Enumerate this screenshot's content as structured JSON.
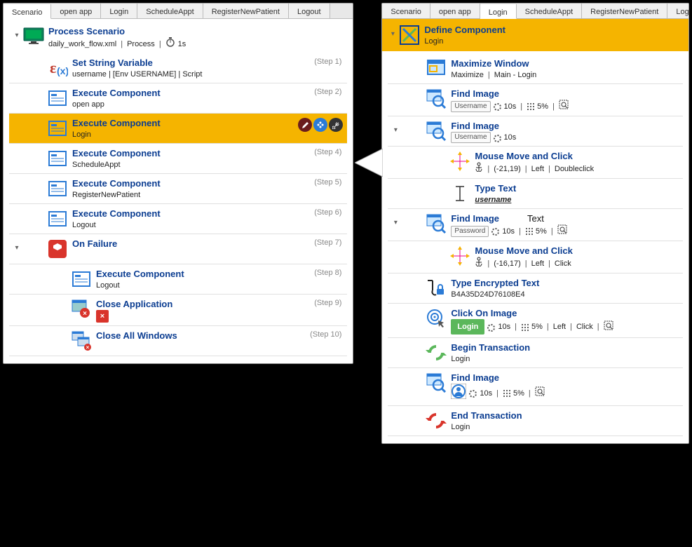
{
  "left": {
    "tabs": [
      "Scenario",
      "open app",
      "Login",
      "ScheduleAppt",
      "RegisterNewPatient",
      "Logout"
    ],
    "active_tab": 0,
    "header": {
      "title": "Process Scenario",
      "file": "daily_work_flow.xml",
      "kind": "Process",
      "time": "1s"
    },
    "steps": [
      {
        "title": "Set String Variable",
        "sub": "username | [Env USERNAME] | Script",
        "step": "(Step 1)",
        "icon": "var",
        "indent": 1
      },
      {
        "title": "Execute Component",
        "sub": "open app",
        "step": "(Step 2)",
        "icon": "exec",
        "indent": 1
      },
      {
        "title": "Execute Component",
        "sub": "Login",
        "step": "",
        "icon": "exec",
        "indent": 1,
        "hl": true,
        "action_icons": true
      },
      {
        "title": "Execute Component",
        "sub": "ScheduleAppt",
        "step": "(Step 4)",
        "icon": "exec",
        "indent": 1
      },
      {
        "title": "Execute Component",
        "sub": "RegisterNewPatient",
        "step": "(Step 5)",
        "icon": "exec",
        "indent": 1
      },
      {
        "title": "Execute Component",
        "sub": "Logout",
        "step": "(Step 6)",
        "icon": "exec",
        "indent": 1
      },
      {
        "title": "On Failure",
        "sub": "",
        "step": "(Step 7)",
        "icon": "fail",
        "indent": 1,
        "expander": true
      },
      {
        "title": "Execute Component",
        "sub": "Logout",
        "step": "(Step 8)",
        "icon": "exec",
        "indent": 2
      },
      {
        "title": "Close Application",
        "sub": "",
        "step": "(Step 9)",
        "icon": "closeapp",
        "indent": 2,
        "sub_redx": true
      },
      {
        "title": "Close All Windows",
        "sub": "",
        "step": "(Step 10)",
        "icon": "closeall",
        "indent": 2
      }
    ]
  },
  "right": {
    "tabs": [
      "Scenario",
      "open app",
      "Login",
      "ScheduleAppt",
      "RegisterNewPatient",
      "Logout"
    ],
    "active_tab": 2,
    "header": {
      "title": "Define Component",
      "sub": "Login"
    },
    "float_text": "Text",
    "items": [
      {
        "title": "Maximize Window",
        "icon": "maxwin",
        "indent": 1,
        "sub_parts": [
          {
            "t": "Maximize"
          },
          {
            "sep": true
          },
          {
            "t": "Main - Login"
          }
        ]
      },
      {
        "title": "Find Image",
        "icon": "findimg",
        "indent": 1,
        "sub_parts": [
          {
            "pill": "Username"
          },
          {
            "spinner": true
          },
          {
            "t": "10s"
          },
          {
            "sep": true
          },
          {
            "dotgrid": true
          },
          {
            "t": "5%"
          },
          {
            "sep": true
          },
          {
            "crop": true
          }
        ]
      },
      {
        "title": "Find Image",
        "icon": "findimg",
        "indent": 1,
        "expander": true,
        "sub_parts": [
          {
            "pill": "Username"
          },
          {
            "spinner": true
          },
          {
            "t": "10s"
          }
        ]
      },
      {
        "title": "Mouse Move and Click",
        "icon": "move",
        "indent": 2,
        "sub_parts": [
          {
            "anchor": true
          },
          {
            "sep": true
          },
          {
            "t": "(-21,19)"
          },
          {
            "sep": true
          },
          {
            "t": "Left"
          },
          {
            "sep": true
          },
          {
            "t": "Doubleclick"
          }
        ]
      },
      {
        "title": "Type Text",
        "icon": "cursor",
        "indent": 2,
        "sub_parts": [
          {
            "ui": "username"
          }
        ]
      },
      {
        "title": "Find Image",
        "icon": "findimg",
        "indent": 1,
        "expander": true,
        "float_after": true,
        "sub_parts": [
          {
            "pill": "Password"
          },
          {
            "spinner": true
          },
          {
            "t": "10s"
          },
          {
            "sep": true
          },
          {
            "dotgrid": true
          },
          {
            "t": "5%"
          },
          {
            "sep": true
          },
          {
            "crop": true
          }
        ]
      },
      {
        "title": "Mouse Move and Click",
        "icon": "move",
        "indent": 2,
        "sub_parts": [
          {
            "anchor": true
          },
          {
            "sep": true
          },
          {
            "t": "(-16,17)"
          },
          {
            "sep": true
          },
          {
            "t": "Left"
          },
          {
            "sep": true
          },
          {
            "t": "Click"
          }
        ]
      },
      {
        "title": "Type Encrypted Text",
        "icon": "enctext",
        "indent": 1,
        "sub_parts": [
          {
            "t": "B4A35D24D76108E4"
          }
        ]
      },
      {
        "title": "Click On Image",
        "icon": "clickimg",
        "indent": 1,
        "sub_parts": [
          {
            "login_btn": "Login"
          },
          {
            "spinner": true
          },
          {
            "t": "10s"
          },
          {
            "sep": true
          },
          {
            "dotgrid": true
          },
          {
            "t": "5%"
          },
          {
            "sep": true
          },
          {
            "t": "Left"
          },
          {
            "sep": true
          },
          {
            "t": "Click"
          },
          {
            "sep": true
          },
          {
            "crop": true
          }
        ]
      },
      {
        "title": "Begin Transaction",
        "icon": "begintx",
        "indent": 1,
        "sub_parts": [
          {
            "t": "Login"
          }
        ]
      },
      {
        "title": "Find Image",
        "icon": "findimg",
        "indent": 1,
        "sub_parts": [
          {
            "avatar": true
          },
          {
            "spinner": true
          },
          {
            "t": "10s"
          },
          {
            "sep": true
          },
          {
            "dotgrid": true
          },
          {
            "t": "5%"
          },
          {
            "sep": true
          },
          {
            "crop": true
          }
        ]
      },
      {
        "title": "End Transaction",
        "icon": "endtx",
        "indent": 1,
        "sub_parts": [
          {
            "t": "Login"
          }
        ]
      }
    ]
  },
  "colors": {
    "highlight": "#f5b400",
    "title_blue": "#0b3d91",
    "fail_red": "#d9342b",
    "login_green": "#5bb75b"
  }
}
